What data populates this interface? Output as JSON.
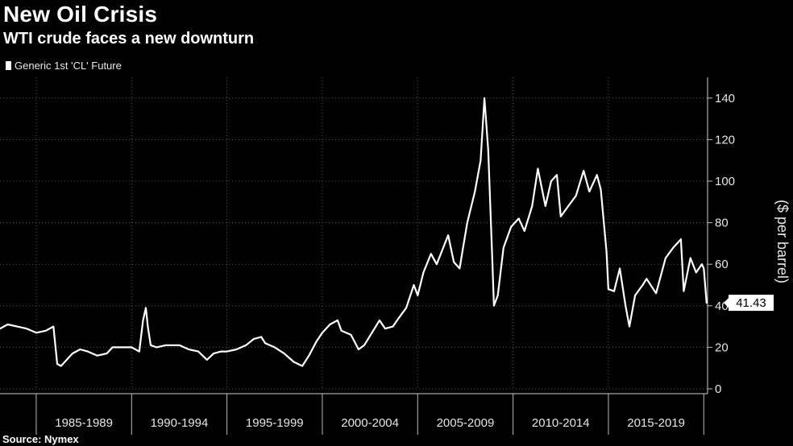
{
  "header": {
    "title": "New Oil Crisis",
    "subtitle": "WTI crude faces a new downturn"
  },
  "legend": {
    "label": "Generic 1st 'CL' Future"
  },
  "footer": {
    "source": "Source: Nymex"
  },
  "colors": {
    "background": "#000000",
    "line": "#ffffff",
    "grid": "#555555",
    "text": "#e6e6e6"
  },
  "chart_data": {
    "type": "line",
    "title": "New Oil Crisis",
    "subtitle": "WTI crude faces a new downturn",
    "ylabel": "($ per barrel)",
    "xlabel": "",
    "ylim": [
      0,
      150
    ],
    "xlim": [
      1983.1,
      2020.2
    ],
    "yticks": [
      0,
      20,
      40,
      60,
      80,
      100,
      120,
      140
    ],
    "grid": true,
    "legend_position": "top-left",
    "x_bands": [
      {
        "label": "1985-1989",
        "start": 1985,
        "end": 1990
      },
      {
        "label": "1990-1994",
        "start": 1990,
        "end": 1995
      },
      {
        "label": "1995-1999",
        "start": 1995,
        "end": 2000
      },
      {
        "label": "2000-2004",
        "start": 2000,
        "end": 2005
      },
      {
        "label": "2005-2009",
        "start": 2005,
        "end": 2010
      },
      {
        "label": "2010-2014",
        "start": 2010,
        "end": 2015
      },
      {
        "label": "2015-2019",
        "start": 2015,
        "end": 2020
      }
    ],
    "last_value_label": "41.43",
    "series": [
      {
        "name": "Generic 1st 'CL' Future",
        "x": [
          1983.1,
          1983.5,
          1984.0,
          1984.5,
          1985.0,
          1985.5,
          1985.9,
          1986.1,
          1986.3,
          1986.6,
          1986.9,
          1987.3,
          1987.7,
          1988.2,
          1988.7,
          1989.0,
          1989.5,
          1990.0,
          1990.4,
          1990.6,
          1990.75,
          1990.85,
          1991.0,
          1991.3,
          1991.8,
          1992.5,
          1993.0,
          1993.5,
          1993.95,
          1994.3,
          1994.7,
          1995.0,
          1995.5,
          1996.0,
          1996.4,
          1996.8,
          1997.0,
          1997.5,
          1998.0,
          1998.5,
          1998.95,
          1999.3,
          1999.7,
          2000.0,
          2000.4,
          2000.8,
          2001.0,
          2001.5,
          2001.9,
          2002.2,
          2002.6,
          2003.0,
          2003.3,
          2003.7,
          2004.0,
          2004.4,
          2004.8,
          2005.0,
          2005.3,
          2005.7,
          2006.0,
          2006.6,
          2006.9,
          2007.2,
          2007.6,
          2008.0,
          2008.3,
          2008.5,
          2008.7,
          2008.9,
          2009.0,
          2009.2,
          2009.5,
          2009.9,
          2010.3,
          2010.6,
          2011.0,
          2011.3,
          2011.7,
          2012.0,
          2012.3,
          2012.5,
          2012.9,
          2013.3,
          2013.7,
          2014.0,
          2014.4,
          2014.6,
          2014.9,
          2015.0,
          2015.3,
          2015.6,
          2015.9,
          2016.1,
          2016.4,
          2016.8,
          2017.0,
          2017.5,
          2018.0,
          2018.4,
          2018.8,
          2018.95,
          2019.3,
          2019.6,
          2019.9,
          2020.0,
          2020.15
        ],
        "values": [
          29,
          31,
          30,
          29,
          27,
          28,
          30,
          12,
          11,
          14,
          17,
          19,
          18,
          16,
          17,
          20,
          20,
          20,
          18,
          33,
          39,
          30,
          21,
          20,
          21,
          21,
          19,
          18,
          14,
          17,
          18,
          18,
          19,
          21,
          24,
          25,
          22,
          20,
          17,
          13,
          11,
          16,
          23,
          27,
          31,
          33,
          28,
          26,
          19,
          21,
          27,
          33,
          29,
          30,
          34,
          39,
          50,
          45,
          56,
          65,
          60,
          74,
          61,
          58,
          80,
          95,
          110,
          140,
          115,
          65,
          40,
          45,
          68,
          78,
          82,
          76,
          88,
          106,
          88,
          100,
          103,
          83,
          88,
          93,
          105,
          95,
          103,
          96,
          66,
          48,
          47,
          58,
          40,
          30,
          45,
          50,
          53,
          46,
          63,
          68,
          72,
          47,
          63,
          56,
          60,
          58,
          41.43
        ]
      }
    ]
  }
}
